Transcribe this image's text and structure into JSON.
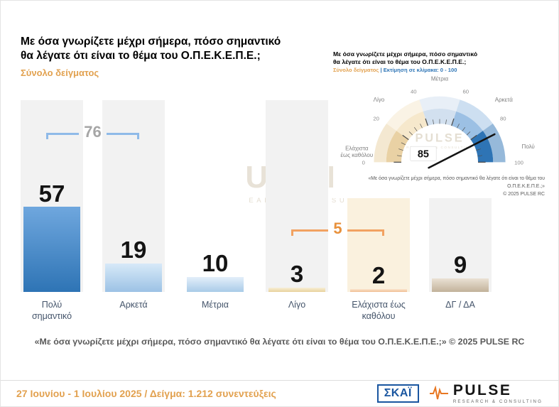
{
  "header": {
    "title_line1": "Με όσα γνωρίζετε μέχρι σήμερα, πόσο σημαντικό",
    "title_line2": "θα λέγατε ότι είναι το θέμα του Ο.Π.Ε.Κ.Ε.Π.Ε.;",
    "subtitle": "Σύνολο δείγματος"
  },
  "chart_data": [
    {
      "type": "bar",
      "title": "Με όσα γνωρίζετε μέχρι σήμερα, πόσο σημαντικό θα λέγατε ότι είναι το θέμα του Ο.Π.Ε.Κ.Ε.Π.Ε.;",
      "subtitle": "Σύνολο δείγματος",
      "categories": [
        "Πολύ σημαντικό",
        "Αρκετά",
        "Μέτρια",
        "Λίγο",
        "Ελάχιστα έως καθόλου",
        "ΔΓ / ΔΑ"
      ],
      "values": [
        57,
        19,
        10,
        3,
        2,
        9
      ],
      "ylim": [
        0,
        100
      ],
      "grid": false,
      "group_brackets": [
        {
          "label": "76",
          "from": 0,
          "to": 1,
          "line_color": "#8FBAE8",
          "text_color": "#A6A6A6"
        },
        {
          "label": "5",
          "from": 3,
          "to": 4,
          "line_color": "#F2A261",
          "text_color": "#E8913C"
        }
      ],
      "bar_colors": [
        [
          "#6FA7DE",
          "#2E74B5"
        ],
        [
          "#D7E9F8",
          "#9CC2E5"
        ],
        [
          "#E3EFFA",
          "#A9CBE8"
        ],
        [
          "#F7EED6",
          "#E8D29C"
        ],
        [
          "#FAE4CD",
          "#F1BE92"
        ],
        [
          "#EAE1D3",
          "#C2B29A"
        ]
      ],
      "band_colors": [
        "#F2F2F2",
        "#F2F2F2",
        "#FFFFFF",
        "#F2F2F2",
        "#FAF1DE",
        "#F2F2F2"
      ]
    },
    {
      "type": "gauge",
      "title_line1": "Με όσα γνωρίζετε μέχρι σήμερα, πόσο σημαντικό",
      "title_line2": "θα λέγατε ότι είναι το θέμα του Ο.Π.Ε.Κ.Ε.Π.Ε.;",
      "subtitle_left": "Σύνολο δείγματος",
      "subtitle_right": "| Εκτίμηση σε κλίμακα: 0 - 100",
      "min": 0,
      "max": 100,
      "value": 85,
      "ticks": [
        0,
        20,
        40,
        60,
        80,
        100
      ],
      "segment_colors": [
        "#E9D1A4",
        "#F6E8CC",
        "#D2E0EF",
        "#9CC0E4",
        "#2E74B5"
      ],
      "scale_labels": [
        {
          "lines": [
            "Ελάχιστα",
            "έως καθόλου"
          ],
          "value": 4
        },
        {
          "lines": [
            "Λίγο"
          ],
          "value": 27
        },
        {
          "lines": [
            "Μέτρια"
          ],
          "value": 50
        },
        {
          "lines": [
            "Αρκετά"
          ],
          "value": 73
        },
        {
          "lines": [
            "Πολύ"
          ],
          "value": 94
        }
      ],
      "caption_line1": "«Με όσα γνωρίζετε μέχρι σήμερα, πόσο σημαντικό θα λέγατε ότι είναι το θέμα του Ο.Π.Ε.Κ.Ε.Π.Ε.;»",
      "caption_line2": "© 2025 PULSE RC"
    }
  ],
  "watermark": {
    "brand": "PULSE",
    "tagline": "RESEARCH & CONSULTING"
  },
  "caption": {
    "text": "«Με όσα γνωρίζετε μέχρι σήμερα, πόσο σημαντικό θα λέγατε ότι είναι το θέμα του Ο.Π.Ε.Κ.Ε.Π.Ε.;»",
    "credit": "© 2025 PULSE RC"
  },
  "footer": {
    "fieldwork": "27 Ιουνίου - 1 Ιουλίου 2025  /  Δείγμα:  1.212 συνεντεύξεις",
    "skai_label": "ΣΚΑΪ",
    "pulse_name": "PULSE",
    "pulse_tagline": "RESEARCH & CONSULTING"
  },
  "colors": {
    "accent_gold": "#E2A14F",
    "accent_blue": "#2E74B5",
    "caption_gray": "#595959",
    "category_label": "#44546A"
  }
}
